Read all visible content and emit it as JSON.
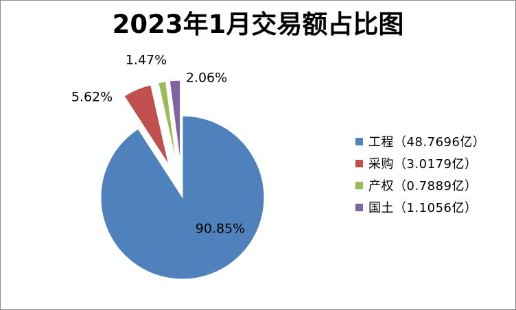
{
  "chart_data": {
    "type": "pie",
    "title": "2023年1月交易额占比图",
    "unit": "亿",
    "categories": [
      "工程",
      "采购",
      "产权",
      "国土"
    ],
    "values": [
      48.7696,
      3.0179,
      0.7889,
      1.1056
    ],
    "percent_labels": [
      "90.85%",
      "5.62%",
      "1.47%",
      "2.06%"
    ],
    "legend_labels": [
      "工程（48.7696亿）",
      "采购（3.0179亿）",
      "产权（0.7889亿）",
      "国土（1.1056亿）"
    ],
    "colors": [
      "#4f81bd",
      "#c0504d",
      "#9bbb59",
      "#8064a2"
    ],
    "exploded": [
      false,
      true,
      true,
      true
    ],
    "legend_position": "right"
  }
}
